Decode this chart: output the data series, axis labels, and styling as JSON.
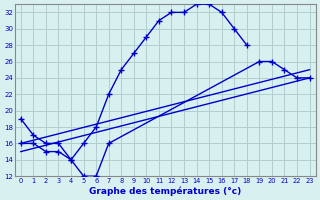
{
  "title": "Graphe des températures (°c)",
  "background_color": "#d8f0f0",
  "grid_color": "#b0cece",
  "line_color": "#0000cc",
  "xlim": [
    -0.5,
    23.5
  ],
  "ylim": [
    12,
    33
  ],
  "xticks": [
    0,
    1,
    2,
    3,
    4,
    5,
    6,
    7,
    8,
    9,
    10,
    11,
    12,
    13,
    14,
    15,
    16,
    17,
    18,
    19,
    20,
    21,
    22,
    23
  ],
  "yticks": [
    12,
    14,
    16,
    18,
    20,
    22,
    24,
    26,
    28,
    30,
    32
  ],
  "line1_x": [
    0,
    1,
    2,
    3,
    4,
    5,
    6,
    7,
    8,
    9,
    10,
    11,
    12,
    13,
    14,
    15,
    16,
    17,
    18
  ],
  "line1_y": [
    19,
    17,
    16,
    16,
    14,
    16,
    18,
    22,
    25,
    27,
    29,
    31,
    32,
    32,
    33,
    33,
    32,
    30,
    28
  ],
  "line2_x": [
    0,
    1,
    2,
    3,
    4,
    5,
    6,
    7,
    19,
    20,
    21,
    22,
    23
  ],
  "line2_y": [
    16,
    16,
    15,
    15,
    14,
    12,
    12,
    16,
    26,
    26,
    25,
    24,
    24
  ],
  "line3_x": [
    0,
    23
  ],
  "line3_y": [
    15,
    24
  ],
  "line4_x": [
    0,
    23
  ],
  "line4_y": [
    16,
    25
  ]
}
